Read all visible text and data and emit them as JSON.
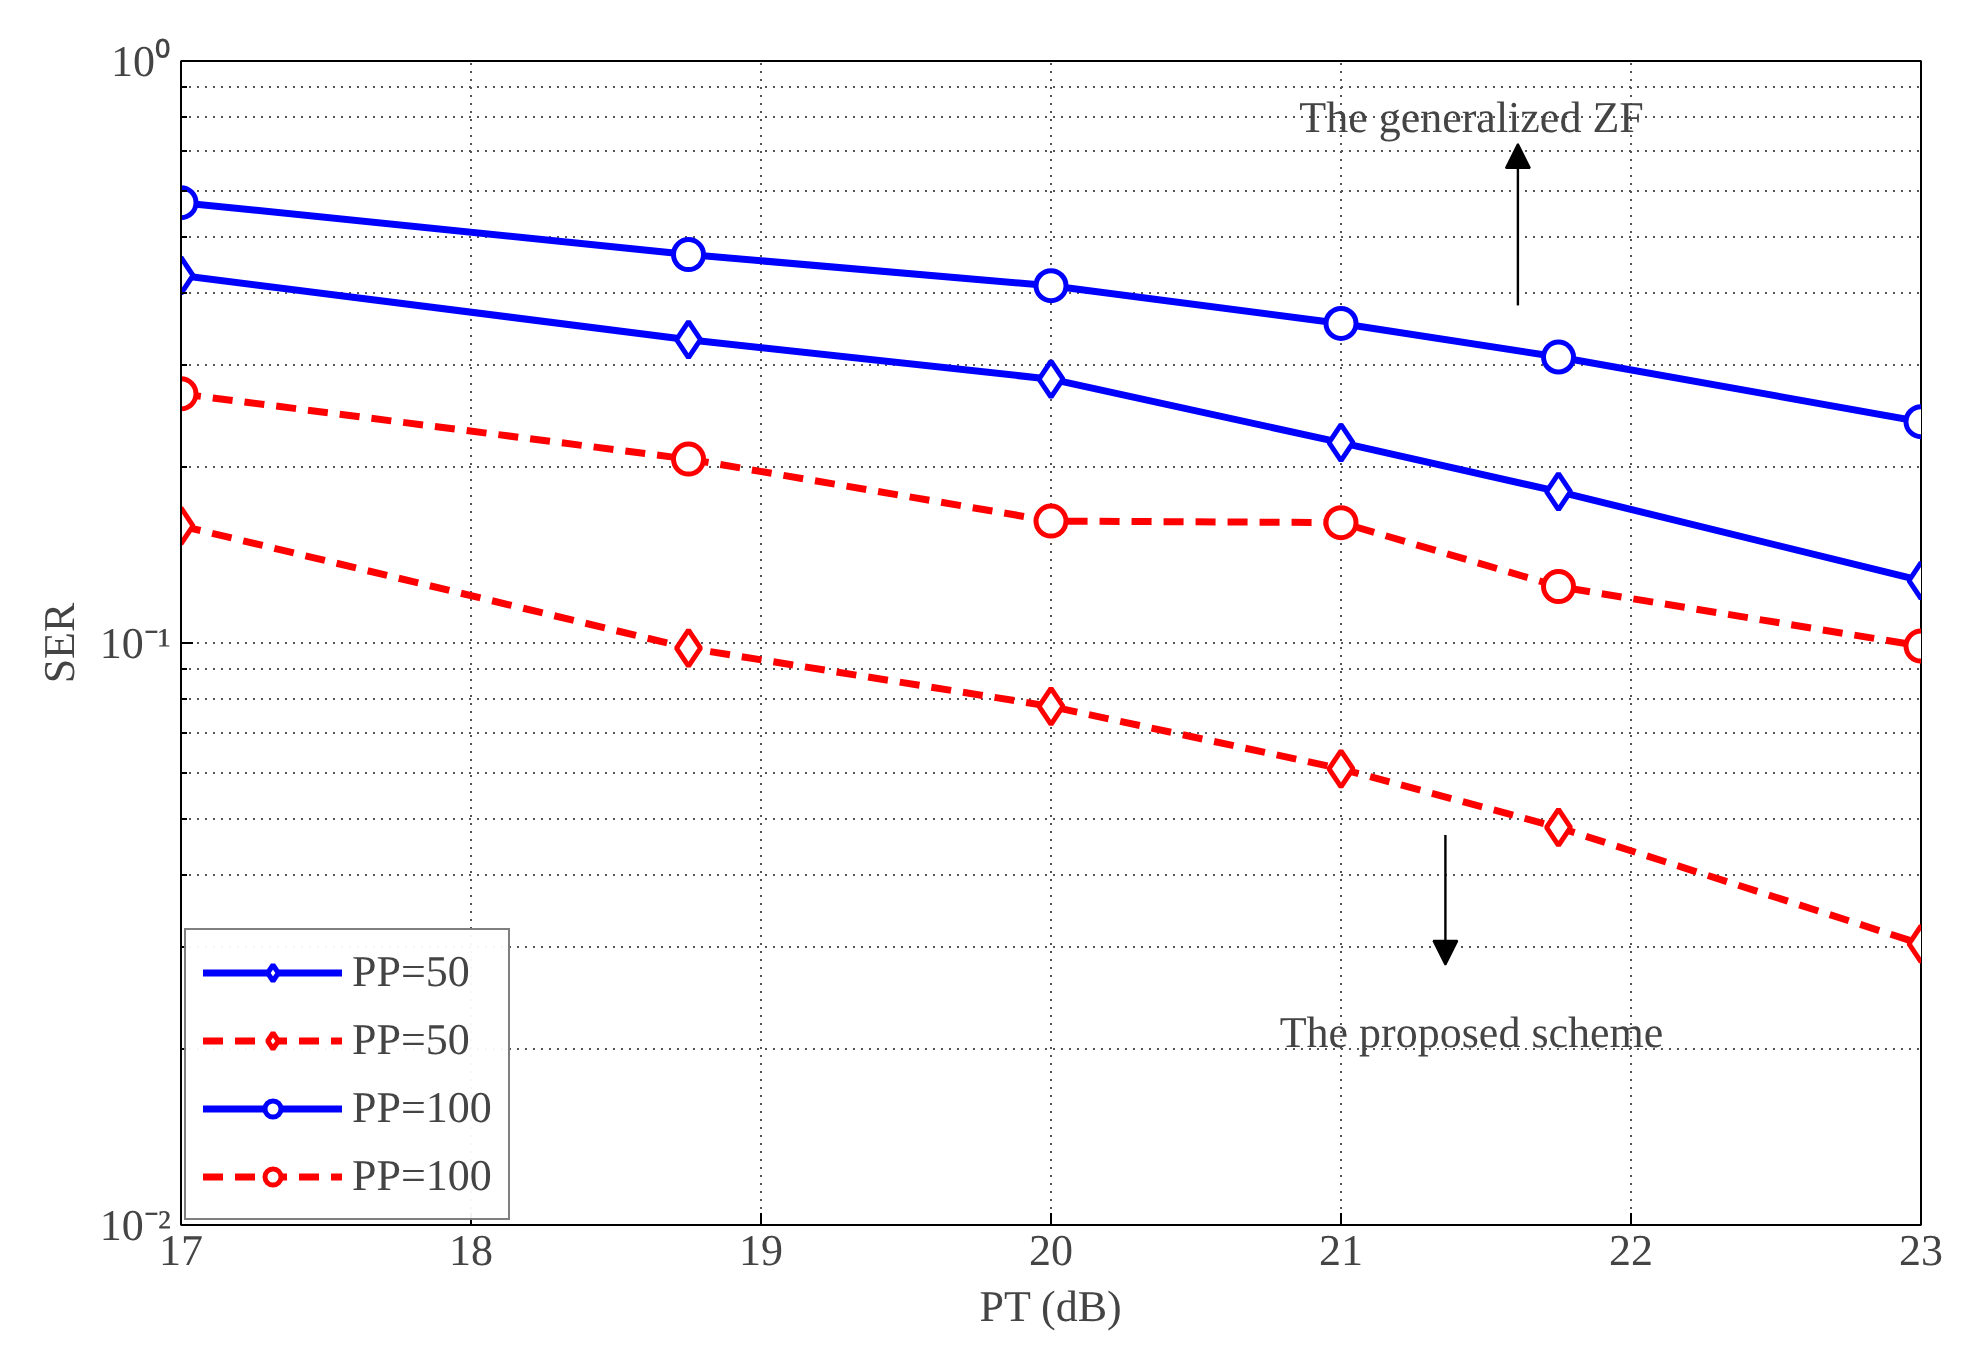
{
  "chart_data": {
    "type": "line",
    "xlabel": "PT (dB)",
    "ylabel": "SER",
    "log": "y",
    "x": [
      17,
      18.75,
      20,
      21,
      21.75,
      23
    ],
    "series": [
      {
        "name": "PP=50",
        "color": "#0000ff",
        "marker": "diamond",
        "line_style": "solid",
        "values": [
          0.428,
          0.332,
          0.284,
          0.221,
          0.182,
          0.128
        ]
      },
      {
        "name": "PP=50",
        "color": "#ff0000",
        "marker": "diamond",
        "line_style": "dashed",
        "values": [
          0.159,
          0.098,
          0.0778,
          0.0608,
          0.0482,
          0.0304
        ]
      },
      {
        "name": "PP=100",
        "color": "#0000ff",
        "marker": "circle",
        "line_style": "solid",
        "values": [
          0.571,
          0.465,
          0.411,
          0.354,
          0.31,
          0.24
        ]
      },
      {
        "name": "PP=100",
        "color": "#ff0000",
        "marker": "circle",
        "line_style": "dashed",
        "values": [
          0.268,
          0.207,
          0.162,
          0.161,
          0.125,
          0.0988
        ]
      }
    ],
    "xlim": [
      17,
      23
    ],
    "xticks": [
      17,
      18,
      19,
      20,
      21,
      22,
      23
    ],
    "ylim": [
      0.01,
      1
    ],
    "yticks": [
      {
        "value": 0.01,
        "label": "10⁻²"
      },
      {
        "value": 0.1,
        "label": "10⁻¹"
      },
      {
        "value": 1,
        "label": "10⁰"
      }
    ],
    "grid": true,
    "legend": "bottom left",
    "annotations": [
      "The generalized ZF",
      "The proposed scheme"
    ]
  }
}
